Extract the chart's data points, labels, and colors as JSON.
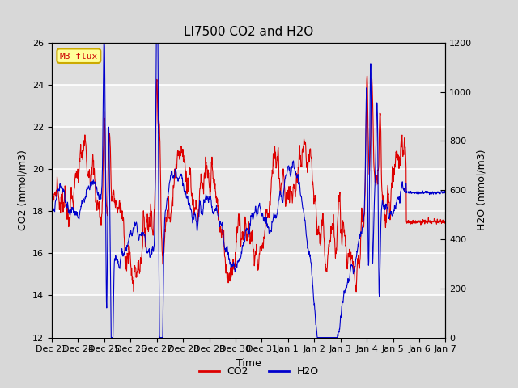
{
  "title": "LI7500 CO2 and H2O",
  "xlabel": "Time",
  "ylabel_left": "CO2 (mmol/m3)",
  "ylabel_right": "H2O (mmol/m3)",
  "co2_color": "#dd0000",
  "h2o_color": "#0000cc",
  "ylim_left": [
    12,
    26
  ],
  "ylim_right": [
    0,
    1200
  ],
  "yticks_left": [
    12,
    14,
    16,
    18,
    20,
    22,
    24,
    26
  ],
  "yticks_right": [
    0,
    200,
    400,
    600,
    800,
    1000,
    1200
  ],
  "bg_color": "#d8d8d8",
  "plot_bg_color": "#e8e8e8",
  "annotation_text": "MB_flux",
  "annotation_bg": "#ffff99",
  "annotation_border": "#ccaa00",
  "grid_color": "white",
  "title_fontsize": 11,
  "axis_label_fontsize": 9,
  "tick_fontsize": 8,
  "legend_fontsize": 9,
  "n_days": 15,
  "seed": 7
}
